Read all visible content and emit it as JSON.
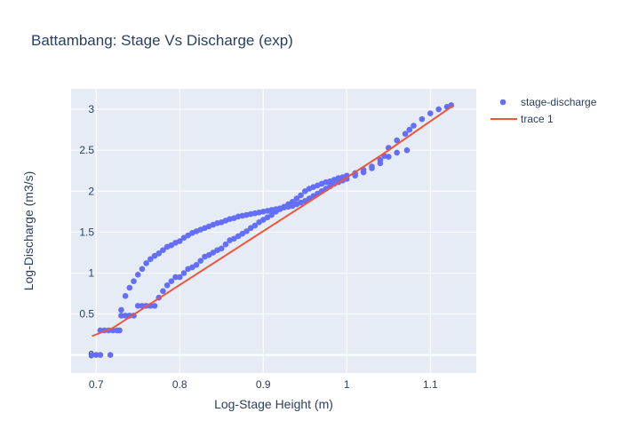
{
  "chart_data": {
    "type": "scatter",
    "title": "Battambang: Stage Vs Discharge (exp)",
    "xlabel": "Log-Stage Height (m)",
    "ylabel": "Log-Discharge (m3/s)",
    "xlim": [
      0.67,
      1.155
    ],
    "ylim": [
      -0.22,
      3.25
    ],
    "xticks": [
      0.7,
      0.8,
      0.9,
      1,
      1.1
    ],
    "xtick_labels": [
      "0.7",
      "0.8",
      "0.9",
      "1",
      "1.1"
    ],
    "yticks": [
      0,
      0.5,
      1,
      1.5,
      2,
      2.5,
      3
    ],
    "ytick_labels": [
      "0",
      "0.5",
      "1",
      "1.5",
      "2",
      "2.5",
      "3"
    ],
    "grid": true,
    "legend_position": "top-right",
    "series": [
      {
        "name": "stage-discharge",
        "mode": "markers",
        "color": "#636efa",
        "x": [
          0.695,
          0.7,
          0.705,
          0.717,
          0.705,
          0.71,
          0.715,
          0.72,
          0.725,
          0.728,
          0.73,
          0.735,
          0.74,
          0.745,
          0.75,
          0.755,
          0.76,
          0.765,
          0.77,
          0.775,
          0.78,
          0.785,
          0.79,
          0.795,
          0.8,
          0.805,
          0.81,
          0.815,
          0.82,
          0.825,
          0.83,
          0.835,
          0.84,
          0.845,
          0.85,
          0.855,
          0.86,
          0.865,
          0.87,
          0.875,
          0.88,
          0.885,
          0.89,
          0.895,
          0.9,
          0.905,
          0.91,
          0.915,
          0.92,
          0.925,
          0.93,
          0.935,
          0.94,
          0.945,
          0.95,
          0.955,
          0.96,
          0.965,
          0.97,
          0.975,
          0.98,
          0.985,
          0.99,
          0.995,
          1.0,
          1.01,
          1.02,
          1.03,
          1.04,
          1.045,
          1.05,
          1.06,
          1.07,
          1.075,
          1.08,
          1.09,
          1.1,
          1.11,
          1.12,
          1.125,
          0.73,
          0.735,
          0.74,
          0.745,
          0.75,
          0.755,
          0.76,
          0.765,
          0.77,
          0.775,
          0.78,
          0.785,
          0.79,
          0.795,
          0.8,
          0.805,
          0.81,
          0.815,
          0.82,
          0.825,
          0.83,
          0.835,
          0.84,
          0.845,
          0.85,
          0.855,
          0.86,
          0.865,
          0.87,
          0.875,
          0.88,
          0.885,
          0.89,
          0.895,
          0.9,
          0.905,
          0.91,
          0.915,
          0.92,
          0.925,
          0.93,
          0.935,
          0.94,
          0.945,
          0.95,
          0.955,
          0.96,
          0.965,
          0.97,
          0.975,
          0.98,
          0.985,
          0.99,
          0.995,
          1.0,
          1.01,
          1.02,
          1.03,
          1.04,
          1.05,
          1.06,
          1.072
        ],
        "y": [
          0.0,
          0.0,
          0.0,
          0.0,
          0.3,
          0.3,
          0.3,
          0.3,
          0.3,
          0.3,
          0.48,
          0.48,
          0.48,
          0.48,
          0.6,
          0.6,
          0.6,
          0.6,
          0.6,
          0.7,
          0.78,
          0.85,
          0.9,
          0.95,
          0.95,
          1.0,
          1.05,
          1.07,
          1.1,
          1.15,
          1.2,
          1.22,
          1.25,
          1.28,
          1.3,
          1.35,
          1.4,
          1.42,
          1.45,
          1.48,
          1.51,
          1.55,
          1.58,
          1.62,
          1.65,
          1.68,
          1.71,
          1.75,
          1.78,
          1.81,
          1.84,
          1.87,
          1.91,
          1.95,
          2.0,
          2.03,
          2.05,
          2.07,
          2.09,
          2.11,
          2.12,
          2.14,
          2.16,
          2.17,
          2.19,
          2.22,
          2.26,
          2.3,
          2.38,
          2.43,
          2.53,
          2.62,
          2.7,
          2.75,
          2.8,
          2.88,
          2.95,
          3.0,
          3.03,
          3.05,
          0.55,
          0.72,
          0.82,
          0.9,
          0.98,
          1.05,
          1.12,
          1.17,
          1.21,
          1.24,
          1.28,
          1.32,
          1.34,
          1.37,
          1.39,
          1.43,
          1.46,
          1.49,
          1.51,
          1.53,
          1.55,
          1.57,
          1.59,
          1.61,
          1.62,
          1.64,
          1.66,
          1.67,
          1.69,
          1.7,
          1.71,
          1.72,
          1.73,
          1.74,
          1.75,
          1.76,
          1.77,
          1.78,
          1.79,
          1.8,
          1.81,
          1.82,
          1.84,
          1.86,
          1.88,
          1.91,
          1.94,
          1.97,
          2.0,
          2.03,
          2.06,
          2.09,
          2.11,
          2.13,
          2.15,
          2.19,
          2.23,
          2.28,
          2.34,
          2.42,
          2.47,
          2.5
        ]
      },
      {
        "name": "trace 1",
        "mode": "lines",
        "color": "#ef553b",
        "x": [
          0.695,
          0.72,
          1.04,
          1.128
        ],
        "y": [
          0.23,
          0.33,
          2.43,
          3.05
        ]
      }
    ]
  }
}
